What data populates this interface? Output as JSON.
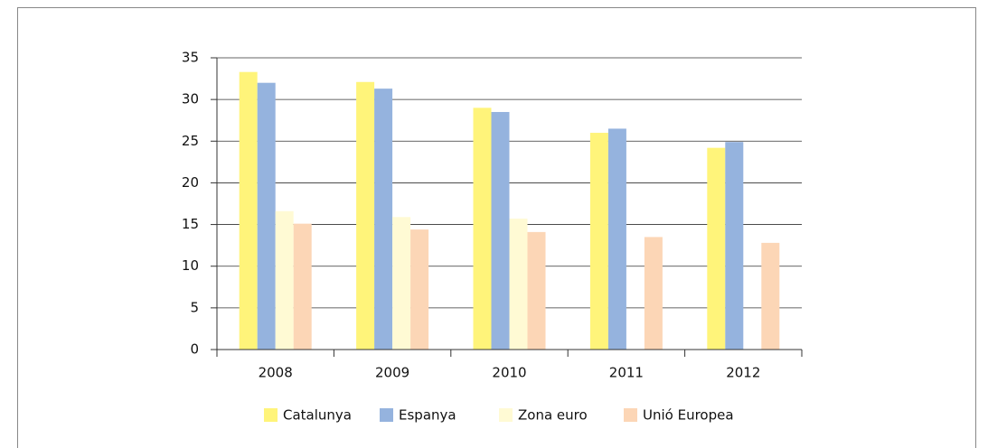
{
  "chart_data": {
    "type": "bar",
    "categories": [
      "2008",
      "2009",
      "2010",
      "2011",
      "2012"
    ],
    "series": [
      {
        "name": "Catalunya",
        "color": "#fff47a",
        "values": [
          33.3,
          32.1,
          29.0,
          26.0,
          24.2
        ]
      },
      {
        "name": "Espanya",
        "color": "#95b3de",
        "values": [
          32.0,
          31.3,
          28.5,
          26.5,
          24.9
        ]
      },
      {
        "name": "Zona euro",
        "color": "#fffad4",
        "values": [
          16.6,
          15.9,
          15.7,
          null,
          null
        ]
      },
      {
        "name": "Unió Europea",
        "color": "#fcd6b6",
        "values": [
          15.1,
          14.4,
          14.1,
          13.5,
          12.8
        ]
      }
    ],
    "ylim": [
      0,
      35
    ],
    "yticks": [
      0,
      5,
      10,
      15,
      20,
      25,
      30,
      35
    ],
    "grid": true,
    "legend": "bottom"
  }
}
